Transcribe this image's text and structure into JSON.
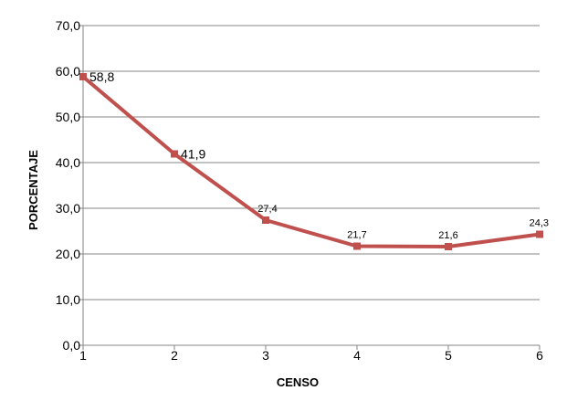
{
  "chart_data": {
    "type": "line",
    "title": "",
    "xlabel": "CENSO",
    "ylabel": "PORCENTAJE",
    "x": [
      1,
      2,
      3,
      4,
      5,
      6
    ],
    "x_tick_labels": [
      "1",
      "2",
      "3",
      "4",
      "5",
      "6"
    ],
    "y_tick_labels": [
      "0,0",
      "10,0",
      "20,0",
      "30,0",
      "40,0",
      "50,0",
      "60,0",
      "70,0"
    ],
    "ylim": [
      0,
      70
    ],
    "y_ticks": [
      0,
      10,
      20,
      30,
      40,
      50,
      60,
      70
    ],
    "grid": true,
    "legend": "none",
    "series": [
      {
        "values": [
          58.8,
          41.9,
          27.4,
          21.7,
          21.6,
          24.3
        ],
        "data_labels": [
          "58,8",
          "41,9",
          "27,4",
          "21,7",
          "21,6",
          "24,3"
        ],
        "color": "#c0504d",
        "marker": "square"
      }
    ]
  },
  "colors": {
    "grid": "#868686",
    "axis": "#868686",
    "series": "#c0504d"
  }
}
